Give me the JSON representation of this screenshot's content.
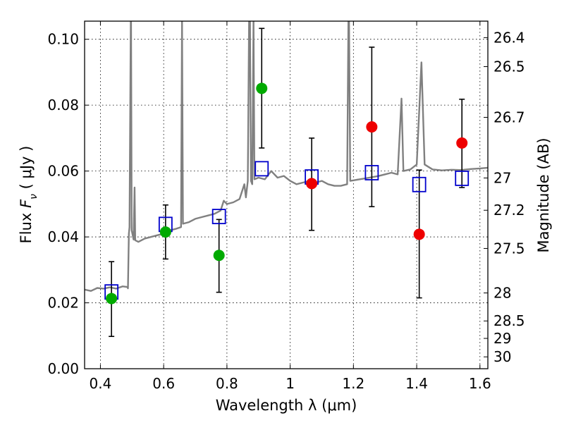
{
  "chart_data": {
    "type": "scatter",
    "xlabel": "Wavelength  λ (μm)",
    "ylabel": "Flux  F_ν  ( μJy )",
    "ylabel_parts": {
      "prefix": "Flux  ",
      "symbol": "F",
      "subscript": "ν",
      "suffix": "  ( μJy )"
    },
    "ylabel_right": "Magnitude (AB)",
    "xlim": [
      0.35,
      1.625
    ],
    "ylim": [
      0.0,
      0.1055
    ],
    "grid": true,
    "x_ticks": [
      0.4,
      0.6,
      0.8,
      1.0,
      1.2,
      1.4,
      1.6
    ],
    "x_tick_labels": [
      "0.4",
      "0.6",
      "0.8",
      "1",
      "1.2",
      "1.4",
      "1.6"
    ],
    "y_ticks": [
      0.0,
      0.02,
      0.04,
      0.06,
      0.08,
      0.1
    ],
    "y_tick_labels": [
      "0.00",
      "0.02",
      "0.04",
      "0.06",
      "0.08",
      "0.10"
    ],
    "right_ticks": [
      {
        "label": "26.4",
        "flux": 0.1005
      },
      {
        "label": "26.5",
        "flux": 0.0917
      },
      {
        "label": "26.7",
        "flux": 0.0763
      },
      {
        "label": "27",
        "flux": 0.0579
      },
      {
        "label": "27.2",
        "flux": 0.0481
      },
      {
        "label": "27.5",
        "flux": 0.0365
      },
      {
        "label": "28",
        "flux": 0.023
      },
      {
        "label": "28.5",
        "flux": 0.0145
      },
      {
        "label": "29",
        "flux": 0.0092
      },
      {
        "label": "30",
        "flux": 0.0036
      }
    ],
    "series": [
      {
        "marker": "circle",
        "color": "#00aa00",
        "points": [
          {
            "x": 0.435,
            "y": 0.0213,
            "err_low": 0.0098,
            "err_high": 0.0325
          },
          {
            "x": 0.606,
            "y": 0.0415,
            "err_low": 0.0333,
            "err_high": 0.0497
          },
          {
            "x": 0.775,
            "y": 0.0344,
            "err_low": 0.0232,
            "err_high": 0.0453
          },
          {
            "x": 0.91,
            "y": 0.0851,
            "err_low": 0.067,
            "err_high": 0.1033
          }
        ]
      },
      {
        "marker": "circle",
        "color": "#ee0000",
        "points": [
          {
            "x": 1.068,
            "y": 0.0562,
            "err_low": 0.042,
            "err_high": 0.07
          },
          {
            "x": 1.258,
            "y": 0.0734,
            "err_low": 0.0492,
            "err_high": 0.0976
          },
          {
            "x": 1.408,
            "y": 0.0408,
            "err_low": 0.0215,
            "err_high": 0.0603
          },
          {
            "x": 1.543,
            "y": 0.0685,
            "err_low": 0.055,
            "err_high": 0.0818
          }
        ]
      },
      {
        "marker": "open-square",
        "color": "#0000cc",
        "points": [
          {
            "x": 0.435,
            "y": 0.0233
          },
          {
            "x": 0.606,
            "y": 0.0438
          },
          {
            "x": 0.775,
            "y": 0.0462
          },
          {
            "x": 0.91,
            "y": 0.0607
          },
          {
            "x": 1.068,
            "y": 0.0582
          },
          {
            "x": 1.258,
            "y": 0.0595
          },
          {
            "x": 1.408,
            "y": 0.0559
          },
          {
            "x": 1.543,
            "y": 0.0578
          }
        ]
      }
    ],
    "spectrum": {
      "color": "#808080",
      "points": [
        [
          0.35,
          0.024
        ],
        [
          0.37,
          0.0236
        ],
        [
          0.39,
          0.0245
        ],
        [
          0.41,
          0.0243
        ],
        [
          0.43,
          0.0247
        ],
        [
          0.45,
          0.0243
        ],
        [
          0.47,
          0.025
        ],
        [
          0.485,
          0.0248
        ],
        [
          0.487,
          0.0244
        ],
        [
          0.49,
          0.041
        ],
        [
          0.492,
          0.043
        ],
        [
          0.496,
          0.1055
        ],
        [
          0.497,
          0.1055
        ],
        [
          0.499,
          0.042
        ],
        [
          0.505,
          0.0392
        ],
        [
          0.508,
          0.055
        ],
        [
          0.51,
          0.039
        ],
        [
          0.52,
          0.0385
        ],
        [
          0.54,
          0.0395
        ],
        [
          0.56,
          0.04
        ],
        [
          0.58,
          0.0405
        ],
        [
          0.6,
          0.041
        ],
        [
          0.62,
          0.042
        ],
        [
          0.64,
          0.0425
        ],
        [
          0.655,
          0.043
        ],
        [
          0.658,
          0.1055
        ],
        [
          0.661,
          0.044
        ],
        [
          0.68,
          0.0445
        ],
        [
          0.7,
          0.0455
        ],
        [
          0.72,
          0.046
        ],
        [
          0.74,
          0.0465
        ],
        [
          0.76,
          0.047
        ],
        [
          0.78,
          0.048
        ],
        [
          0.79,
          0.051
        ],
        [
          0.8,
          0.05
        ],
        [
          0.82,
          0.0505
        ],
        [
          0.84,
          0.0515
        ],
        [
          0.855,
          0.056
        ],
        [
          0.86,
          0.052
        ],
        [
          0.866,
          0.057
        ],
        [
          0.87,
          0.1055
        ],
        [
          0.873,
          0.1055
        ],
        [
          0.876,
          0.057
        ],
        [
          0.88,
          0.056
        ],
        [
          0.884,
          0.1055
        ],
        [
          0.887,
          0.0575
        ],
        [
          0.9,
          0.058
        ],
        [
          0.92,
          0.0575
        ],
        [
          0.94,
          0.06
        ],
        [
          0.96,
          0.058
        ],
        [
          0.98,
          0.0585
        ],
        [
          1.0,
          0.057
        ],
        [
          1.02,
          0.056
        ],
        [
          1.04,
          0.0565
        ],
        [
          1.06,
          0.057
        ],
        [
          1.08,
          0.0565
        ],
        [
          1.1,
          0.057
        ],
        [
          1.12,
          0.056
        ],
        [
          1.14,
          0.0555
        ],
        [
          1.16,
          0.0555
        ],
        [
          1.18,
          0.056
        ],
        [
          1.184,
          0.1055
        ],
        [
          1.186,
          0.1055
        ],
        [
          1.19,
          0.057
        ],
        [
          1.22,
          0.0575
        ],
        [
          1.25,
          0.058
        ],
        [
          1.28,
          0.0585
        ],
        [
          1.3,
          0.059
        ],
        [
          1.32,
          0.0595
        ],
        [
          1.34,
          0.059
        ],
        [
          1.352,
          0.082
        ],
        [
          1.358,
          0.06
        ],
        [
          1.38,
          0.0605
        ],
        [
          1.4,
          0.062
        ],
        [
          1.415,
          0.093
        ],
        [
          1.425,
          0.062
        ],
        [
          1.45,
          0.0605
        ],
        [
          1.48,
          0.0602
        ],
        [
          1.51,
          0.0604
        ],
        [
          1.54,
          0.0603
        ],
        [
          1.57,
          0.0606
        ],
        [
          1.6,
          0.0608
        ],
        [
          1.625,
          0.061
        ]
      ]
    }
  }
}
